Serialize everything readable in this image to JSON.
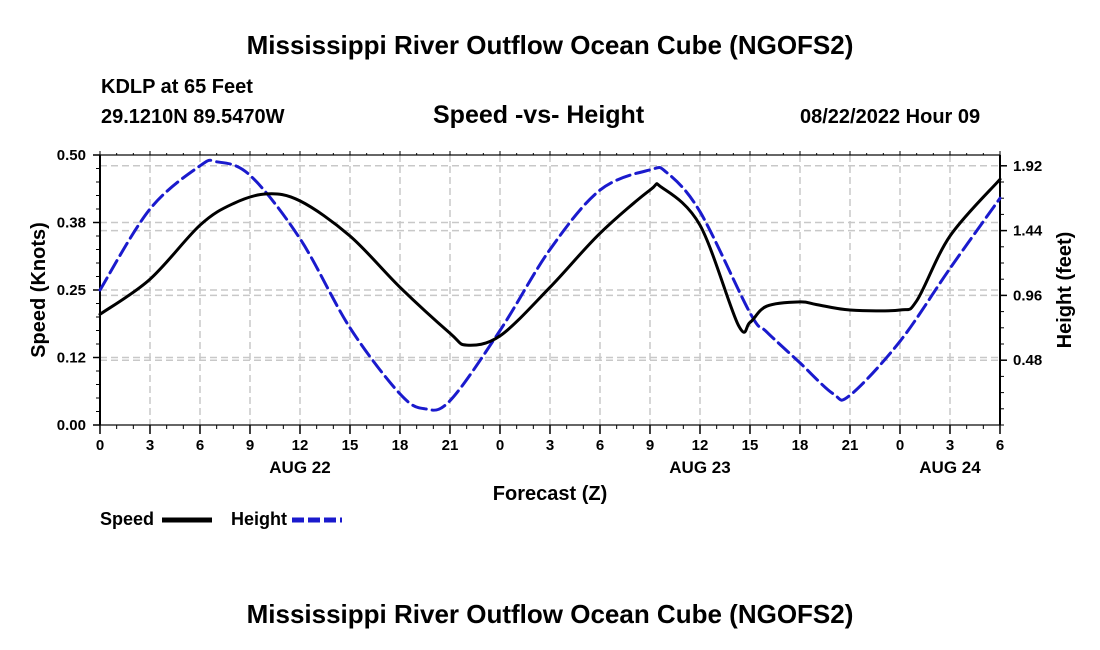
{
  "header": {
    "title": "Mississippi River Outflow Ocean Cube (NGOFS2)",
    "station": "KDLP at 65 Feet",
    "coords": "29.1210N  89.5470W",
    "datetime": "08/22/2022 Hour 09"
  },
  "footer": {
    "title": "Mississippi River Outflow Ocean Cube (NGOFS2)"
  },
  "legend": {
    "speed_label": "Speed",
    "height_label": "Height"
  },
  "colors": {
    "speed": "#000000",
    "height": "#1a1acd",
    "grid": "#c8c8c8"
  },
  "chart_data": {
    "type": "line",
    "title": "Speed -vs- Height",
    "xlabel": "Forecast (Z)",
    "ylabel": "Speed (Knots)",
    "y2label": "Height (feet)",
    "x_ticks": [
      "0",
      "3",
      "6",
      "9",
      "12",
      "15",
      "18",
      "21",
      "0",
      "3",
      "6",
      "9",
      "12",
      "15",
      "18",
      "21",
      "0",
      "3",
      "6"
    ],
    "day_labels": [
      {
        "label": "AUG 22",
        "hour": 12
      },
      {
        "label": "AUG 23",
        "hour": 36
      },
      {
        "label": "AUG 24",
        "hour": 51
      }
    ],
    "xlim": [
      0,
      54
    ],
    "ylim": [
      0,
      0.5
    ],
    "y_ticks": [
      "0.00",
      "0.12",
      "0.25",
      "0.38",
      "0.50"
    ],
    "y2lim": [
      0,
      2.0
    ],
    "y2_ticks": [
      "0.48",
      "0.96",
      "1.44",
      "1.92"
    ],
    "series": [
      {
        "name": "Speed",
        "axis": "left",
        "x": [
          0,
          3,
          6,
          8,
          10,
          12,
          15,
          18,
          21,
          22,
          24,
          27,
          30,
          33,
          33.7,
          36,
          38.3,
          39,
          40,
          42,
          43,
          45,
          48,
          49,
          51,
          54
        ],
        "values": [
          0.205,
          0.27,
          0.37,
          0.41,
          0.428,
          0.415,
          0.35,
          0.255,
          0.17,
          0.148,
          0.165,
          0.255,
          0.355,
          0.435,
          0.44,
          0.37,
          0.185,
          0.19,
          0.22,
          0.228,
          0.223,
          0.213,
          0.213,
          0.23,
          0.35,
          0.455
        ]
      },
      {
        "name": "Height",
        "axis": "right",
        "x": [
          0,
          3,
          6,
          7,
          9,
          12,
          15,
          18,
          19.5,
          21,
          24,
          27,
          30,
          33,
          34,
          36,
          39,
          40,
          42,
          44,
          45,
          48,
          51,
          54
        ],
        "values": [
          1.0,
          1.6,
          1.92,
          1.95,
          1.85,
          1.38,
          0.72,
          0.23,
          0.12,
          0.18,
          0.7,
          1.3,
          1.74,
          1.89,
          1.87,
          1.58,
          0.83,
          0.69,
          0.46,
          0.23,
          0.22,
          0.62,
          1.16,
          1.68
        ]
      }
    ]
  }
}
